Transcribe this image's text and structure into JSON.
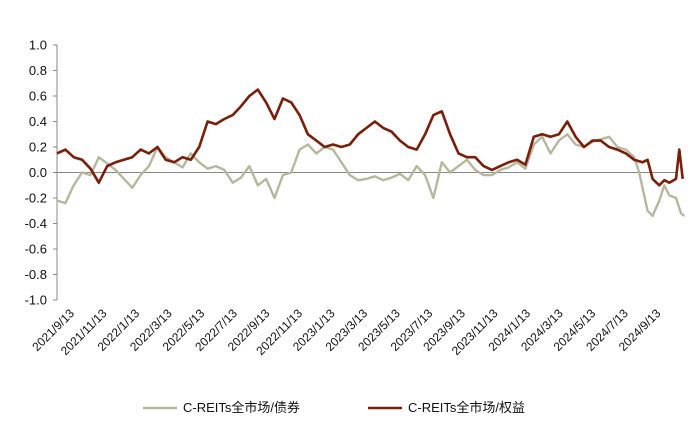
{
  "chart_data": {
    "type": "line",
    "title": "",
    "xlabel": "",
    "ylabel": "",
    "ylim": [
      -1.0,
      1.0
    ],
    "yticks": [
      "1.0",
      "0.8",
      "0.6",
      "0.4",
      "0.2",
      "0.0",
      "-0.2",
      "-0.4",
      "-0.6",
      "-0.8",
      "-1.0"
    ],
    "x_tick_labels": [
      "2021/9/13",
      "2021/11/13",
      "2022/1/13",
      "2022/3/13",
      "2022/5/13",
      "2022/7/13",
      "2022/9/13",
      "2022/11/13",
      "2023/1/13",
      "2023/3/13",
      "2023/5/13",
      "2023/7/13",
      "2023/9/13",
      "2023/11/13",
      "2024/1/13",
      "2024/3/13",
      "2024/5/13",
      "2024/7/13",
      "2024/9/13"
    ],
    "x_range": [
      0,
      37
    ],
    "legend_position": "bottom",
    "grid": false,
    "series": [
      {
        "name": "C-REITs全市场/债券",
        "color": "#b5b89c",
        "points": [
          [
            0,
            -0.22
          ],
          [
            0.5,
            -0.24
          ],
          [
            1,
            -0.1
          ],
          [
            1.5,
            0.0
          ],
          [
            2,
            -0.02
          ],
          [
            2.5,
            0.12
          ],
          [
            3,
            0.07
          ],
          [
            3.5,
            0.02
          ],
          [
            4,
            -0.05
          ],
          [
            4.5,
            -0.12
          ],
          [
            5,
            -0.02
          ],
          [
            5.5,
            0.05
          ],
          [
            6,
            0.2
          ],
          [
            6.5,
            0.12
          ],
          [
            7,
            0.08
          ],
          [
            7.5,
            0.04
          ],
          [
            8,
            0.15
          ],
          [
            8.5,
            0.08
          ],
          [
            9,
            0.03
          ],
          [
            9.5,
            0.05
          ],
          [
            10,
            0.02
          ],
          [
            10.5,
            -0.08
          ],
          [
            11,
            -0.04
          ],
          [
            11.5,
            0.05
          ],
          [
            12,
            -0.1
          ],
          [
            12.5,
            -0.05
          ],
          [
            13,
            -0.2
          ],
          [
            13.5,
            -0.02
          ],
          [
            14,
            0.0
          ],
          [
            14.5,
            0.18
          ],
          [
            15,
            0.22
          ],
          [
            15.5,
            0.15
          ],
          [
            16,
            0.2
          ],
          [
            16.5,
            0.18
          ],
          [
            17,
            0.08
          ],
          [
            17.5,
            -0.02
          ],
          [
            18,
            -0.06
          ],
          [
            18.5,
            -0.05
          ],
          [
            19,
            -0.03
          ],
          [
            19.5,
            -0.06
          ],
          [
            20,
            -0.04
          ],
          [
            20.5,
            -0.01
          ],
          [
            21,
            -0.06
          ],
          [
            21.5,
            0.05
          ],
          [
            22,
            -0.02
          ],
          [
            22.5,
            -0.2
          ],
          [
            23,
            0.08
          ],
          [
            23.5,
            0.0
          ],
          [
            24,
            0.05
          ],
          [
            24.5,
            0.1
          ],
          [
            25,
            0.02
          ],
          [
            25.5,
            -0.02
          ],
          [
            26,
            -0.02
          ],
          [
            26.5,
            0.02
          ],
          [
            27,
            0.04
          ],
          [
            27.5,
            0.08
          ],
          [
            28,
            0.03
          ],
          [
            28.5,
            0.22
          ],
          [
            29,
            0.28
          ],
          [
            29.5,
            0.15
          ],
          [
            30,
            0.25
          ],
          [
            30.5,
            0.3
          ],
          [
            31,
            0.22
          ],
          [
            31.5,
            0.2
          ],
          [
            32,
            0.24
          ],
          [
            32.5,
            0.26
          ],
          [
            33,
            0.28
          ],
          [
            33.5,
            0.2
          ],
          [
            34,
            0.18
          ],
          [
            34.5,
            0.12
          ],
          [
            34.8,
            0.0
          ],
          [
            35,
            -0.12
          ],
          [
            35.3,
            -0.3
          ],
          [
            35.6,
            -0.34
          ],
          [
            36,
            -0.22
          ],
          [
            36.3,
            -0.1
          ],
          [
            36.6,
            -0.18
          ],
          [
            37,
            -0.2
          ],
          [
            37.3,
            -0.32
          ],
          [
            37.5,
            -0.34
          ]
        ]
      },
      {
        "name": "C-REITs全市场/权益",
        "color": "#7a1e0a",
        "points": [
          [
            0,
            0.15
          ],
          [
            0.5,
            0.18
          ],
          [
            1,
            0.12
          ],
          [
            1.5,
            0.1
          ],
          [
            2,
            0.03
          ],
          [
            2.5,
            -0.08
          ],
          [
            3,
            0.05
          ],
          [
            3.5,
            0.08
          ],
          [
            4,
            0.1
          ],
          [
            4.5,
            0.12
          ],
          [
            5,
            0.18
          ],
          [
            5.5,
            0.15
          ],
          [
            6,
            0.2
          ],
          [
            6.5,
            0.1
          ],
          [
            7,
            0.08
          ],
          [
            7.5,
            0.12
          ],
          [
            8,
            0.1
          ],
          [
            8.5,
            0.2
          ],
          [
            9,
            0.4
          ],
          [
            9.5,
            0.38
          ],
          [
            10,
            0.42
          ],
          [
            10.5,
            0.45
          ],
          [
            11,
            0.52
          ],
          [
            11.5,
            0.6
          ],
          [
            12,
            0.65
          ],
          [
            12.5,
            0.55
          ],
          [
            13,
            0.42
          ],
          [
            13.5,
            0.58
          ],
          [
            14,
            0.55
          ],
          [
            14.5,
            0.45
          ],
          [
            15,
            0.3
          ],
          [
            15.5,
            0.25
          ],
          [
            16,
            0.2
          ],
          [
            16.5,
            0.22
          ],
          [
            17,
            0.2
          ],
          [
            17.5,
            0.22
          ],
          [
            18,
            0.3
          ],
          [
            18.5,
            0.35
          ],
          [
            19,
            0.4
          ],
          [
            19.5,
            0.35
          ],
          [
            20,
            0.32
          ],
          [
            20.5,
            0.25
          ],
          [
            21,
            0.2
          ],
          [
            21.5,
            0.18
          ],
          [
            22,
            0.3
          ],
          [
            22.5,
            0.45
          ],
          [
            23,
            0.48
          ],
          [
            23.5,
            0.3
          ],
          [
            24,
            0.15
          ],
          [
            24.5,
            0.12
          ],
          [
            25,
            0.12
          ],
          [
            25.5,
            0.05
          ],
          [
            26,
            0.02
          ],
          [
            26.5,
            0.05
          ],
          [
            27,
            0.08
          ],
          [
            27.5,
            0.1
          ],
          [
            28,
            0.06
          ],
          [
            28.5,
            0.28
          ],
          [
            29,
            0.3
          ],
          [
            29.5,
            0.28
          ],
          [
            30,
            0.3
          ],
          [
            30.5,
            0.4
          ],
          [
            31,
            0.28
          ],
          [
            31.5,
            0.2
          ],
          [
            32,
            0.25
          ],
          [
            32.5,
            0.25
          ],
          [
            33,
            0.2
          ],
          [
            33.5,
            0.18
          ],
          [
            34,
            0.15
          ],
          [
            34.5,
            0.1
          ],
          [
            35,
            0.08
          ],
          [
            35.3,
            0.1
          ],
          [
            35.6,
            -0.05
          ],
          [
            36,
            -0.1
          ],
          [
            36.3,
            -0.06
          ],
          [
            36.6,
            -0.08
          ],
          [
            37,
            -0.05
          ],
          [
            37.2,
            0.18
          ],
          [
            37.4,
            -0.05
          ]
        ]
      }
    ]
  }
}
